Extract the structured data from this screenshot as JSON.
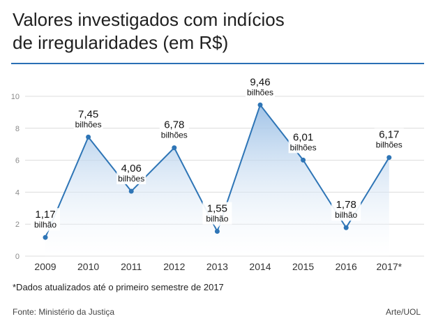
{
  "header": {
    "title_line1": "Valores investigados com indícios",
    "title_line2": "de irregularidades (em R$)"
  },
  "footer": {
    "footnote": "*Dados atualizados até o primeiro semestre de 2017",
    "source": "Fonte: Ministério da Justiça",
    "credit": "Arte/UOL"
  },
  "colors": {
    "line": "#2e75b6",
    "area_top": "#9cc0e6",
    "grid": "#dcdcdc",
    "rule": "#2a6fb5"
  },
  "chart_data": {
    "type": "area",
    "title": "Valores investigados com indícios de irregularidades (em R$)",
    "xlabel": "",
    "ylabel": "",
    "ylim": [
      0,
      10
    ],
    "yticks": [
      0,
      2,
      4,
      6,
      8,
      10
    ],
    "categories": [
      "2009",
      "2010",
      "2011",
      "2012",
      "2013",
      "2014",
      "2015",
      "2016",
      "2017*"
    ],
    "values": [
      1.17,
      7.45,
      4.06,
      6.78,
      1.55,
      9.46,
      6.01,
      1.78,
      6.17
    ],
    "value_labels": [
      "1,17",
      "7,45",
      "4,06",
      "6,78",
      "1,55",
      "9,46",
      "6,01",
      "1,78",
      "6,17"
    ],
    "unit_labels": [
      "bilhão",
      "bilhões",
      "bilhões",
      "bilhões",
      "bilhão",
      "bilhões",
      "bilhões",
      "bilhão",
      "bilhões"
    ],
    "grid": true
  }
}
